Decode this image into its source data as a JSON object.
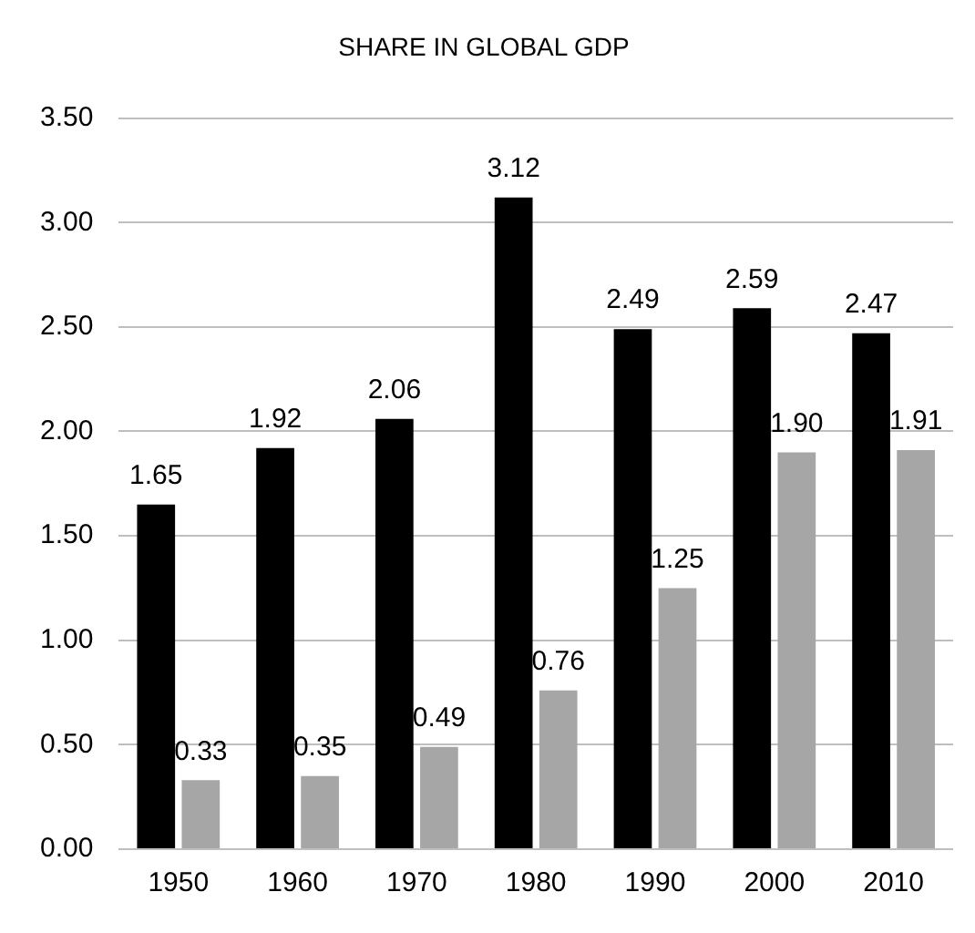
{
  "chart_data": {
    "type": "bar",
    "title": "SHARE IN GLOBAL GDP",
    "categories": [
      "1950",
      "1960",
      "1970",
      "1980",
      "1990",
      "2000",
      "2010"
    ],
    "series": [
      {
        "color": "#000000",
        "values": [
          1.65,
          1.92,
          2.06,
          3.12,
          2.49,
          2.59,
          2.47
        ],
        "value_labels": [
          "1.65",
          "1.92",
          "2.06",
          "3.12",
          "2.49",
          "2.59",
          "2.47"
        ]
      },
      {
        "color": "#a6a6a6",
        "values": [
          0.33,
          0.35,
          0.49,
          0.76,
          1.25,
          1.9,
          1.91
        ],
        "value_labels": [
          "0.33",
          "0.35",
          "0.49",
          "0.76",
          "1.25",
          "1.90",
          "1.91"
        ]
      }
    ],
    "ylim": [
      0,
      3.5
    ],
    "yticks": [
      {
        "value": 0,
        "label": "0.00"
      },
      {
        "value": 0.5,
        "label": "0.50"
      },
      {
        "value": 1,
        "label": "1.00"
      },
      {
        "value": 1.5,
        "label": "1.50"
      },
      {
        "value": 2,
        "label": "2.00"
      },
      {
        "value": 2.5,
        "label": "2.50"
      },
      {
        "value": 3,
        "label": "3.00"
      },
      {
        "value": 3.5,
        "label": "3.50"
      }
    ],
    "grid": "y"
  }
}
